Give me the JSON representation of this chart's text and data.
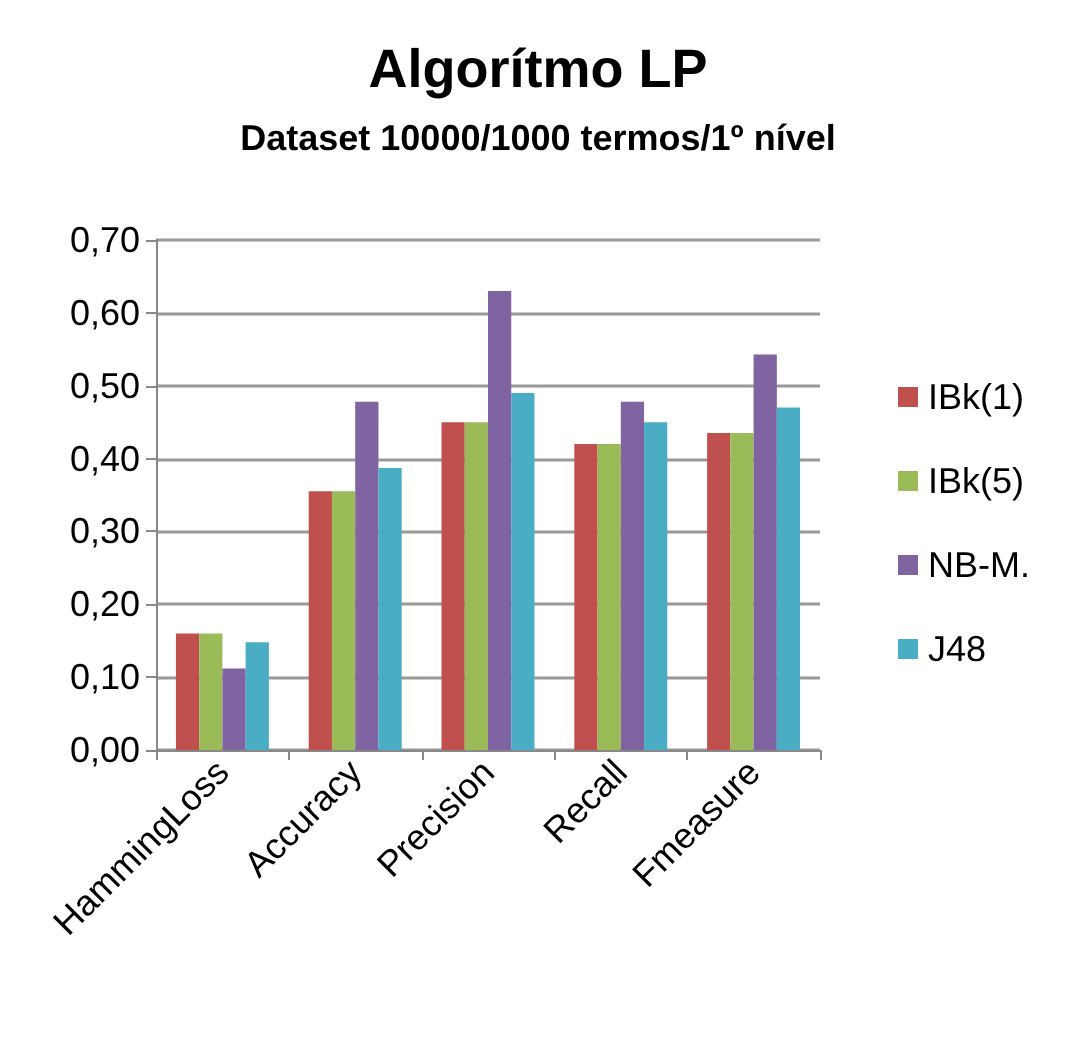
{
  "chart_data": {
    "type": "bar",
    "title": "Algorítmo LP",
    "subtitle": "Dataset 10000/1000 termos/1º nível",
    "categories": [
      "HammingLoss",
      "Accuracy",
      "Precision",
      "Recall",
      "Fmeasure"
    ],
    "series": [
      {
        "name": "IBk(1)",
        "color": "#c0504d",
        "values": [
          0.16,
          0.355,
          0.45,
          0.42,
          0.435
        ]
      },
      {
        "name": "IBk(5)",
        "color": "#9bbb59",
        "values": [
          0.16,
          0.355,
          0.45,
          0.42,
          0.435
        ]
      },
      {
        "name": "NB-M.",
        "color": "#8064a2",
        "values": [
          0.112,
          0.478,
          0.63,
          0.478,
          0.543
        ]
      },
      {
        "name": "J48",
        "color": "#4bacc6",
        "values": [
          0.148,
          0.387,
          0.49,
          0.45,
          0.47
        ]
      }
    ],
    "ylim": [
      0,
      0.7
    ],
    "yticks": [
      {
        "value": 0,
        "label": "0,00"
      },
      {
        "value": 0.1,
        "label": "0,10"
      },
      {
        "value": 0.2,
        "label": "0,20"
      },
      {
        "value": 0.3,
        "label": "0,30"
      },
      {
        "value": 0.4,
        "label": "0,40"
      },
      {
        "value": 0.5,
        "label": "0,50"
      },
      {
        "value": 0.6,
        "label": "0,60"
      },
      {
        "value": 0.7,
        "label": "0,70"
      }
    ],
    "grid": "y",
    "legend": "right"
  }
}
